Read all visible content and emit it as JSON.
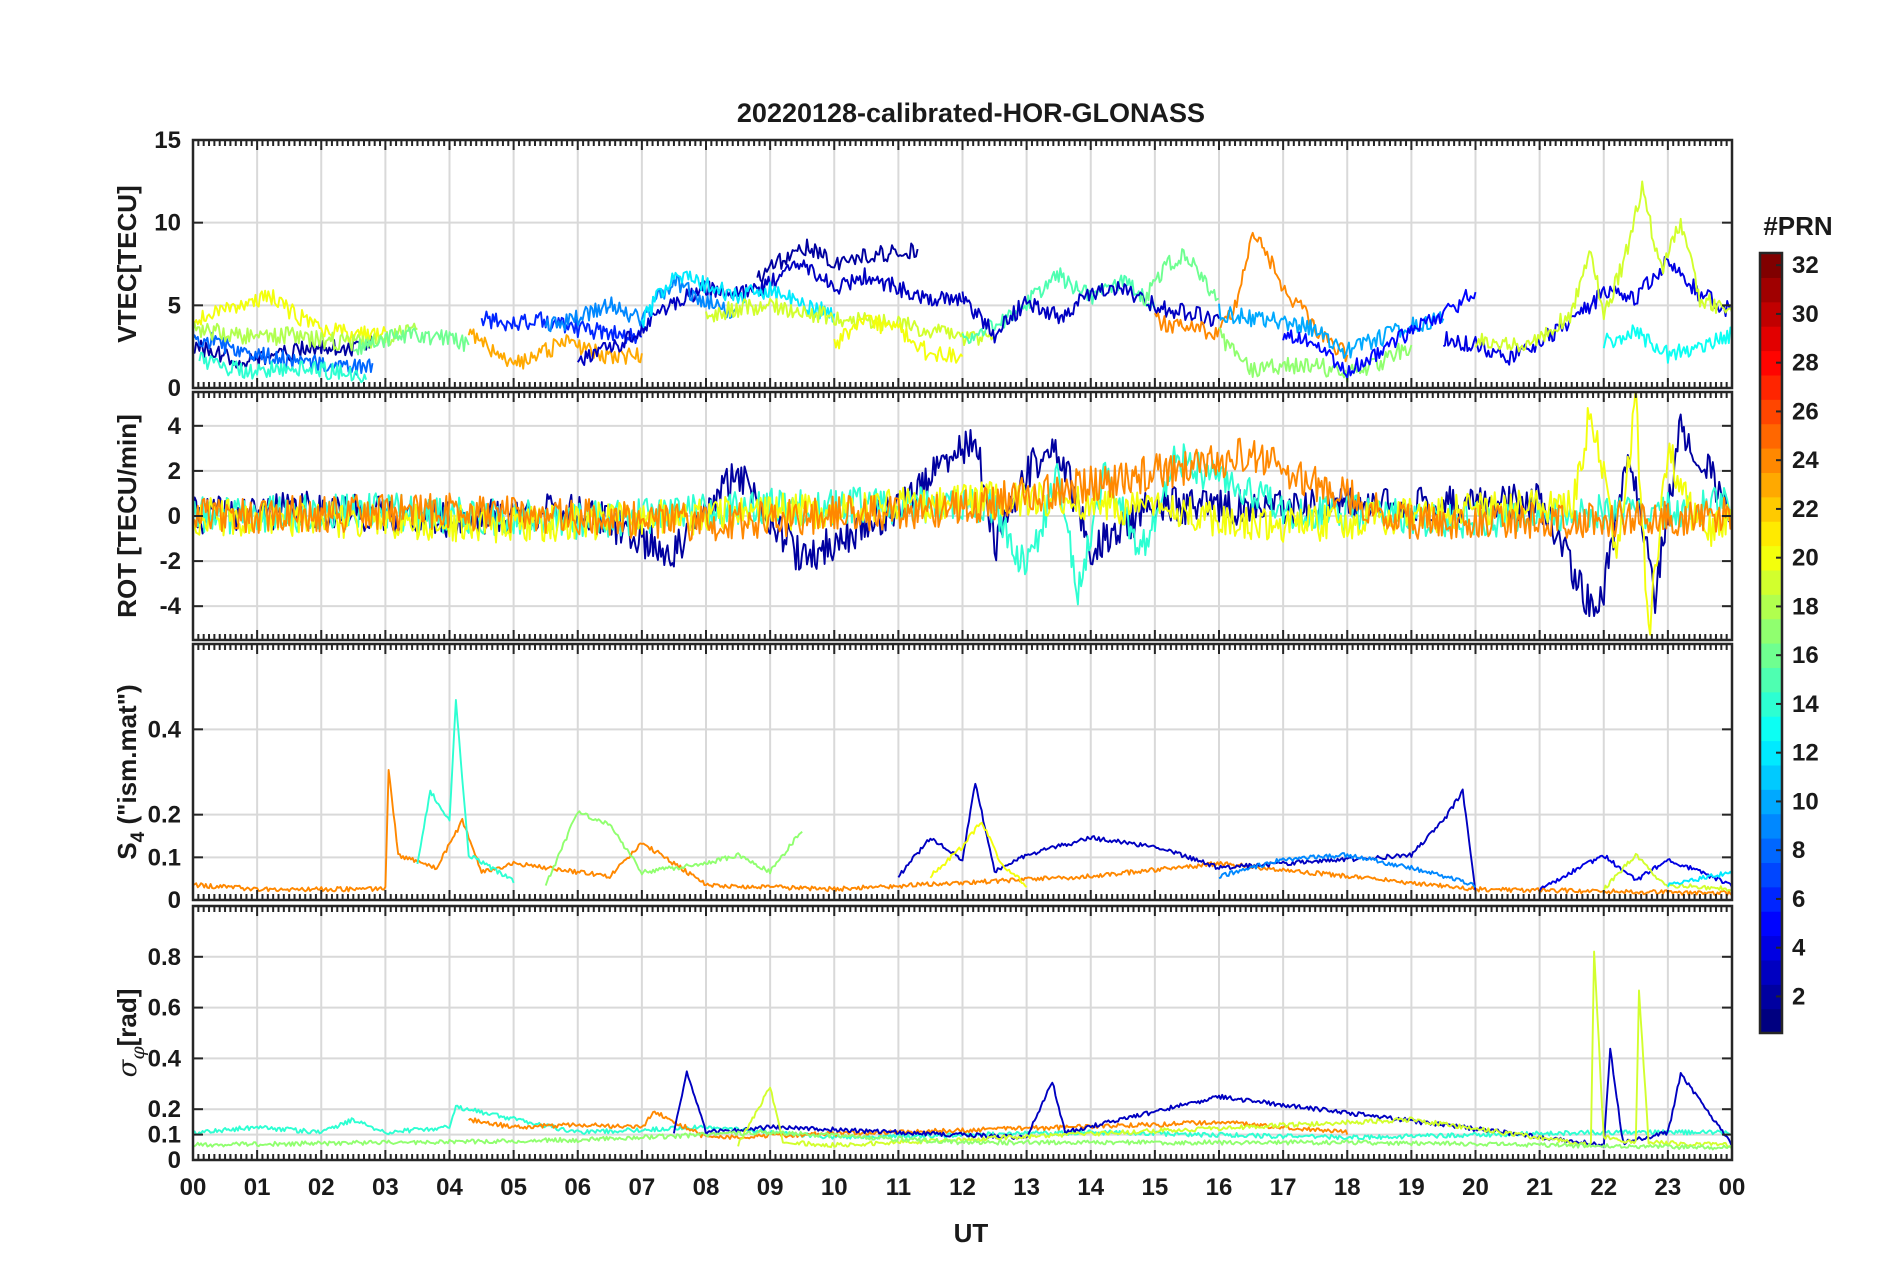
{
  "figure": {
    "title": "20220128-calibrated-HOR-GLONASS",
    "xlabel": "UT",
    "colorbar_title": "#PRN"
  },
  "colors": {
    "ink": "#262626",
    "grid": "#d9d9d9",
    "prn_colormap": "jet"
  },
  "chart_data": [
    {
      "id": "vtec",
      "type": "line",
      "ylabel": "VTEC[TECU]",
      "ylim": [
        0,
        15
      ],
      "yticks": [
        0,
        5,
        10,
        15
      ],
      "xlim": [
        0,
        24
      ],
      "xticks": [
        "00",
        "01",
        "02",
        "03",
        "04",
        "05",
        "06",
        "07",
        "08",
        "09",
        "10",
        "11",
        "12",
        "13",
        "14",
        "15",
        "16",
        "17",
        "18",
        "19",
        "20",
        "21",
        "22",
        "23",
        "00"
      ],
      "grid": true,
      "series": [
        {
          "prn": 2,
          "x": [
            0.0,
            0.4,
            0.8,
            1.2,
            1.6,
            2.0,
            2.4,
            2.8
          ],
          "y": [
            2.5,
            2.0,
            1.6,
            1.9,
            2.2,
            2.6,
            2.3,
            2.9
          ]
        },
        {
          "prn": 8,
          "x": [
            0.0,
            0.5,
            1.0,
            1.5,
            2.0,
            2.5,
            2.8
          ],
          "y": [
            3.2,
            2.6,
            2.1,
            1.7,
            1.4,
            1.2,
            1.5
          ]
        },
        {
          "prn": 14,
          "x": [
            0.1,
            0.5,
            1.0,
            1.5,
            2.0,
            2.5,
            2.7
          ],
          "y": [
            1.8,
            1.3,
            1.0,
            1.3,
            1.1,
            0.8,
            0.5
          ]
        },
        {
          "prn": 20,
          "x": [
            0.0,
            0.4,
            0.8,
            1.2,
            1.6,
            2.0,
            2.5,
            3.0
          ],
          "y": [
            4.2,
            4.6,
            5.2,
            5.6,
            4.4,
            3.6,
            3.2,
            3.4
          ]
        },
        {
          "prn": 18,
          "x": [
            0.0,
            0.5,
            1.0,
            1.5,
            2.0,
            2.5,
            3.0,
            3.5
          ],
          "y": [
            3.6,
            3.3,
            3.0,
            3.2,
            2.9,
            2.7,
            3.0,
            3.6
          ]
        },
        {
          "prn": 16,
          "x": [
            2.5,
            3.0,
            3.5,
            4.0,
            4.3
          ],
          "y": [
            2.3,
            3.0,
            3.3,
            2.9,
            2.6
          ]
        },
        {
          "prn": 23,
          "x": [
            4.3,
            4.7,
            5.0,
            5.4,
            5.8,
            6.2,
            6.6,
            7.0
          ],
          "y": [
            3.2,
            2.3,
            1.4,
            2.0,
            2.8,
            2.3,
            1.8,
            2.1
          ]
        },
        {
          "prn": 6,
          "x": [
            4.5,
            5.0,
            5.5,
            6.0,
            6.5,
            7.0
          ],
          "y": [
            4.2,
            3.9,
            4.1,
            3.6,
            3.3,
            3.1
          ]
        },
        {
          "prn": 3,
          "x": [
            6.0,
            6.5,
            7.0,
            7.5,
            8.0,
            8.5,
            9.0,
            9.5,
            10.0,
            10.5,
            11.0,
            11.5,
            12.0
          ],
          "y": [
            1.5,
            2.4,
            3.4,
            5.1,
            6.0,
            5.6,
            6.3,
            7.5,
            6.0,
            6.8,
            6.0,
            5.5,
            5.2
          ]
        },
        {
          "prn": 9,
          "x": [
            5.5,
            6.0,
            6.5,
            7.0,
            7.5,
            8.0,
            8.5
          ],
          "y": [
            3.6,
            4.3,
            5.0,
            4.2,
            6.5,
            5.2,
            4.4
          ]
        },
        {
          "prn": 12,
          "x": [
            7.0,
            7.5,
            8.0,
            8.5,
            9.0,
            9.5,
            10.0
          ],
          "y": [
            4.0,
            7.0,
            6.2,
            5.5,
            6.0,
            5.0,
            4.5
          ]
        },
        {
          "prn": 2,
          "x": [
            8.8,
            9.2,
            9.6,
            10.0,
            10.5,
            11.0,
            11.3
          ],
          "y": [
            6.5,
            7.8,
            8.6,
            7.6,
            8.0,
            8.2,
            8.4
          ]
        },
        {
          "prn": 19,
          "x": [
            8.0,
            8.5,
            9.0,
            9.5,
            10.0,
            10.5,
            11.0,
            11.5,
            12.0,
            12.5
          ],
          "y": [
            4.4,
            4.8,
            5.0,
            4.6,
            4.3,
            4.0,
            3.9,
            3.4,
            3.1,
            3.0
          ]
        },
        {
          "prn": 20,
          "x": [
            10.0,
            10.5,
            11.0,
            11.5,
            12.0
          ],
          "y": [
            2.7,
            4.1,
            3.5,
            2.0,
            1.9
          ]
        },
        {
          "prn": 15,
          "x": [
            12.0,
            12.5,
            13.0,
            13.5,
            14.0,
            14.5,
            15.0
          ],
          "y": [
            3.0,
            3.7,
            5.2,
            6.8,
            5.5,
            6.5,
            4.8
          ]
        },
        {
          "prn": 3,
          "x": [
            12.0,
            12.5,
            13.0,
            13.5,
            14.0,
            14.5,
            15.0,
            15.5,
            16.0
          ],
          "y": [
            5.5,
            3.2,
            5.3,
            4.3,
            5.7,
            6.0,
            5.0,
            4.5,
            4.2
          ]
        },
        {
          "prn": 16,
          "x": [
            14.8,
            15.2,
            15.5,
            15.8,
            16.0
          ],
          "y": [
            5.2,
            7.5,
            8.0,
            6.2,
            5.4
          ]
        },
        {
          "prn": 24,
          "x": [
            15.0,
            15.5,
            16.0,
            16.3,
            16.5,
            16.7,
            17.0,
            17.3,
            17.6,
            18.0
          ],
          "y": [
            4.1,
            3.6,
            3.3,
            5.2,
            9.4,
            8.5,
            6.0,
            4.8,
            3.2,
            2.0
          ]
        },
        {
          "prn": 17,
          "x": [
            16.0,
            16.5,
            17.0,
            17.5,
            18.0,
            18.5,
            19.0
          ],
          "y": [
            3.2,
            1.1,
            1.3,
            1.4,
            0.8,
            1.5,
            2.6
          ]
        },
        {
          "prn": 10,
          "x": [
            16.0,
            16.5,
            17.0,
            17.5,
            18.0,
            18.5,
            19.0,
            19.5
          ],
          "y": [
            4.6,
            4.2,
            4.0,
            3.6,
            2.2,
            3.0,
            3.8,
            4.2
          ]
        },
        {
          "prn": 5,
          "x": [
            17.0,
            17.5,
            18.0,
            18.5,
            19.0,
            19.5,
            20.0
          ],
          "y": [
            3.4,
            2.5,
            1.1,
            2.1,
            3.5,
            4.5,
            5.8
          ]
        },
        {
          "prn": 4,
          "x": [
            19.5,
            20.0,
            20.5,
            21.0,
            21.5,
            22.0,
            22.5,
            23.0,
            23.5,
            24.0
          ],
          "y": [
            3.0,
            2.6,
            1.8,
            2.8,
            3.9,
            5.8,
            5.4,
            7.8,
            5.7,
            4.6
          ]
        },
        {
          "prn": 19,
          "x": [
            20.0,
            20.5,
            21.0,
            21.5,
            21.8,
            22.0,
            22.3,
            22.6,
            22.9,
            23.2,
            23.5,
            24.0
          ],
          "y": [
            2.9,
            2.5,
            3.1,
            4.5,
            8.5,
            4.4,
            7.5,
            12.0,
            7.2,
            10.1,
            5.4,
            4.6
          ]
        },
        {
          "prn": 13,
          "x": [
            22.0,
            22.5,
            23.0,
            23.5,
            24.0
          ],
          "y": [
            2.8,
            3.4,
            2.0,
            2.5,
            3.2
          ]
        }
      ]
    },
    {
      "id": "rot",
      "type": "line",
      "ylabel": "ROT [TECU/min]",
      "ylim": [
        -5.5,
        5.5
      ],
      "yticks": [
        -4,
        -2,
        0,
        2,
        4
      ],
      "xlim": [
        0,
        24
      ],
      "grid": true,
      "series": [
        {
          "prn": 2,
          "x": [
            0.0,
            2.0,
            4.0,
            6.0,
            7.5,
            8.5,
            9.5,
            11.0,
            12.2,
            12.5,
            13.0,
            13.5,
            14.0,
            15.0,
            17.0,
            19.0,
            21.0,
            21.9,
            22.4,
            22.8,
            23.2,
            24.0
          ],
          "y": [
            0.0,
            0.3,
            -0.2,
            0.3,
            -1.7,
            2.0,
            -2.0,
            0.4,
            3.5,
            -1.5,
            2.0,
            3.0,
            -1.5,
            0.5,
            0.3,
            0.5,
            0.6,
            -4.7,
            3.1,
            -3.6,
            4.1,
            0.2
          ]
        },
        {
          "prn": 14,
          "x": [
            0.0,
            3.0,
            6.0,
            9.0,
            12.5,
            13.0,
            13.5,
            13.8,
            14.2,
            14.8,
            15.3,
            17.0,
            20.0,
            24.0
          ],
          "y": [
            0.0,
            0.2,
            -0.2,
            0.4,
            0.5,
            -2.5,
            1.8,
            -3.5,
            2.0,
            -1.6,
            2.6,
            0.3,
            -0.2,
            0.5
          ]
        },
        {
          "prn": 20,
          "x": [
            0.0,
            5.0,
            10.0,
            13.0,
            17.0,
            21.5,
            21.8,
            22.2,
            22.5,
            22.7,
            23.0,
            23.5,
            24.0
          ],
          "y": [
            0.0,
            -0.4,
            0.3,
            0.8,
            -0.4,
            0.5,
            4.7,
            -1.5,
            5.0,
            -5.4,
            3.0,
            -0.8,
            0.0
          ]
        },
        {
          "prn": 24,
          "x": [
            0.0,
            4.0,
            8.0,
            12.0,
            16.5,
            19.0,
            24.0
          ],
          "y": [
            0.0,
            0.2,
            -0.3,
            0.4,
            2.7,
            -0.3,
            0.0
          ]
        }
      ]
    },
    {
      "id": "s4",
      "type": "line",
      "ylabel": "S4 (\"ism.mat\")",
      "ylim": [
        0,
        0.6
      ],
      "yticks": [
        0,
        0.1,
        0.2,
        0.4
      ],
      "xlim": [
        0,
        24
      ],
      "grid": true,
      "series": [
        {
          "prn": 24,
          "x": [
            0.0,
            1.0,
            2.0,
            3.0,
            3.05,
            3.2,
            3.8,
            4.2,
            4.5,
            5.0,
            6.5,
            7.0,
            8.0,
            10.0,
            14.0,
            16.0,
            18.0,
            20.0,
            24.0
          ],
          "y": [
            0.03,
            0.02,
            0.02,
            0.02,
            0.3,
            0.1,
            0.07,
            0.18,
            0.06,
            0.08,
            0.05,
            0.13,
            0.03,
            0.02,
            0.05,
            0.08,
            0.05,
            0.02,
            0.01
          ]
        },
        {
          "prn": 14,
          "x": [
            3.5,
            3.7,
            4.0,
            4.1,
            4.3,
            5.0
          ],
          "y": [
            0.08,
            0.25,
            0.18,
            0.46,
            0.1,
            0.04
          ]
        },
        {
          "prn": 17,
          "x": [
            5.5,
            6.0,
            6.5,
            7.0,
            8.0,
            8.5,
            9.0,
            9.5
          ],
          "y": [
            0.03,
            0.2,
            0.17,
            0.06,
            0.08,
            0.1,
            0.06,
            0.16
          ]
        },
        {
          "prn": 3,
          "x": [
            11.0,
            11.5,
            12.0,
            12.2,
            12.5,
            13.0,
            14.0,
            15.0,
            16.0,
            19.0,
            19.5,
            19.8,
            20.0
          ],
          "y": [
            0.05,
            0.14,
            0.09,
            0.27,
            0.06,
            0.1,
            0.14,
            0.12,
            0.07,
            0.1,
            0.18,
            0.25,
            0.02
          ]
        },
        {
          "prn": 20,
          "x": [
            11.5,
            12.0,
            12.3,
            12.6,
            13.0
          ],
          "y": [
            0.05,
            0.12,
            0.18,
            0.08,
            0.03
          ]
        },
        {
          "prn": 9,
          "x": [
            16.0,
            17.0,
            18.0,
            19.0,
            20.0
          ],
          "y": [
            0.05,
            0.09,
            0.1,
            0.07,
            0.03
          ]
        },
        {
          "prn": 4,
          "x": [
            21.0,
            22.0,
            22.5,
            23.0,
            24.0
          ],
          "y": [
            0.02,
            0.1,
            0.04,
            0.09,
            0.03
          ]
        },
        {
          "prn": 19,
          "x": [
            22.0,
            22.5,
            22.8,
            23.0,
            24.0
          ],
          "y": [
            0.02,
            0.1,
            0.05,
            0.03,
            0.02
          ]
        },
        {
          "prn": 12,
          "x": [
            23.0,
            24.0
          ],
          "y": [
            0.03,
            0.06
          ]
        }
      ]
    },
    {
      "id": "sigma_phi",
      "type": "line",
      "ylabel": "σφ[rad]",
      "ylim": [
        0,
        1.0
      ],
      "yticks": [
        0,
        0.1,
        0.2,
        0.4,
        0.6,
        0.8
      ],
      "xlim": [
        0,
        24
      ],
      "grid": true,
      "series": [
        {
          "prn": 14,
          "x": [
            0.0,
            1.0,
            2.0,
            2.5,
            3.0,
            4.0,
            4.1,
            6.0,
            8.0,
            10.0,
            14.0,
            18.0,
            22.0,
            24.0
          ],
          "y": [
            0.1,
            0.12,
            0.1,
            0.15,
            0.1,
            0.12,
            0.2,
            0.1,
            0.12,
            0.08,
            0.1,
            0.08,
            0.1,
            0.1
          ]
        },
        {
          "prn": 24,
          "x": [
            4.3,
            5.0,
            6.0,
            7.0,
            7.2,
            8.0,
            15.0,
            16.0,
            17.0,
            18.0
          ],
          "y": [
            0.15,
            0.12,
            0.13,
            0.12,
            0.18,
            0.08,
            0.13,
            0.14,
            0.12,
            0.1
          ]
        },
        {
          "prn": 3,
          "x": [
            7.5,
            7.7,
            8.0,
            9.0,
            13.0,
            13.4,
            13.6,
            16.0,
            22.0,
            22.1,
            22.3,
            23.0,
            23.2,
            24.0
          ],
          "y": [
            0.1,
            0.34,
            0.1,
            0.12,
            0.08,
            0.3,
            0.1,
            0.24,
            0.05,
            0.43,
            0.06,
            0.1,
            0.33,
            0.05
          ]
        },
        {
          "prn": 19,
          "x": [
            8.5,
            9.0,
            9.2,
            10.0,
            19.0,
            21.8,
            21.85,
            22.0,
            22.5,
            22.55,
            22.7,
            24.0
          ],
          "y": [
            0.05,
            0.28,
            0.06,
            0.05,
            0.15,
            0.05,
            0.82,
            0.08,
            0.06,
            0.66,
            0.06,
            0.05
          ]
        },
        {
          "prn": 17,
          "x": [
            0.0,
            6.0,
            9.0,
            12.0,
            18.0,
            24.0
          ],
          "y": [
            0.05,
            0.07,
            0.1,
            0.06,
            0.06,
            0.04
          ]
        }
      ]
    },
    {
      "id": "colorbar",
      "type": "heatmap",
      "title": "#PRN",
      "range": [
        1,
        32
      ],
      "ticks": [
        2,
        4,
        6,
        8,
        10,
        12,
        14,
        16,
        18,
        20,
        22,
        24,
        26,
        28,
        30,
        32
      ]
    }
  ]
}
